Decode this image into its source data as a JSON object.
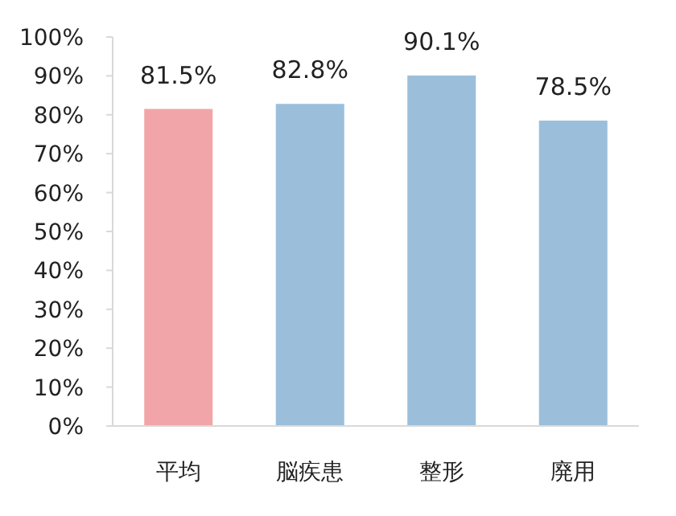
{
  "chart_data": {
    "type": "bar",
    "categories": [
      "平均",
      "脳疾患",
      "整形",
      "廃用"
    ],
    "values": [
      81.5,
      82.8,
      90.1,
      78.5
    ],
    "colors": [
      "#f2a5a8",
      "#9bbfdb",
      "#9bbfdb",
      "#9bbfdb"
    ],
    "value_labels": [
      "81.5%",
      "82.8%",
      "90.1%",
      "78.5%"
    ],
    "ylim": [
      0,
      100
    ],
    "yticks": [
      {
        "value": 0,
        "label": "0%"
      },
      {
        "value": 10,
        "label": "10%"
      },
      {
        "value": 20,
        "label": "20%"
      },
      {
        "value": 30,
        "label": "30%"
      },
      {
        "value": 40,
        "label": "40%"
      },
      {
        "value": 50,
        "label": "50%"
      },
      {
        "value": 60,
        "label": "60%"
      },
      {
        "value": 70,
        "label": "70%"
      },
      {
        "value": 80,
        "label": "80%"
      },
      {
        "value": 90,
        "label": "90%"
      },
      {
        "value": 100,
        "label": "100%"
      }
    ],
    "grid": false
  }
}
